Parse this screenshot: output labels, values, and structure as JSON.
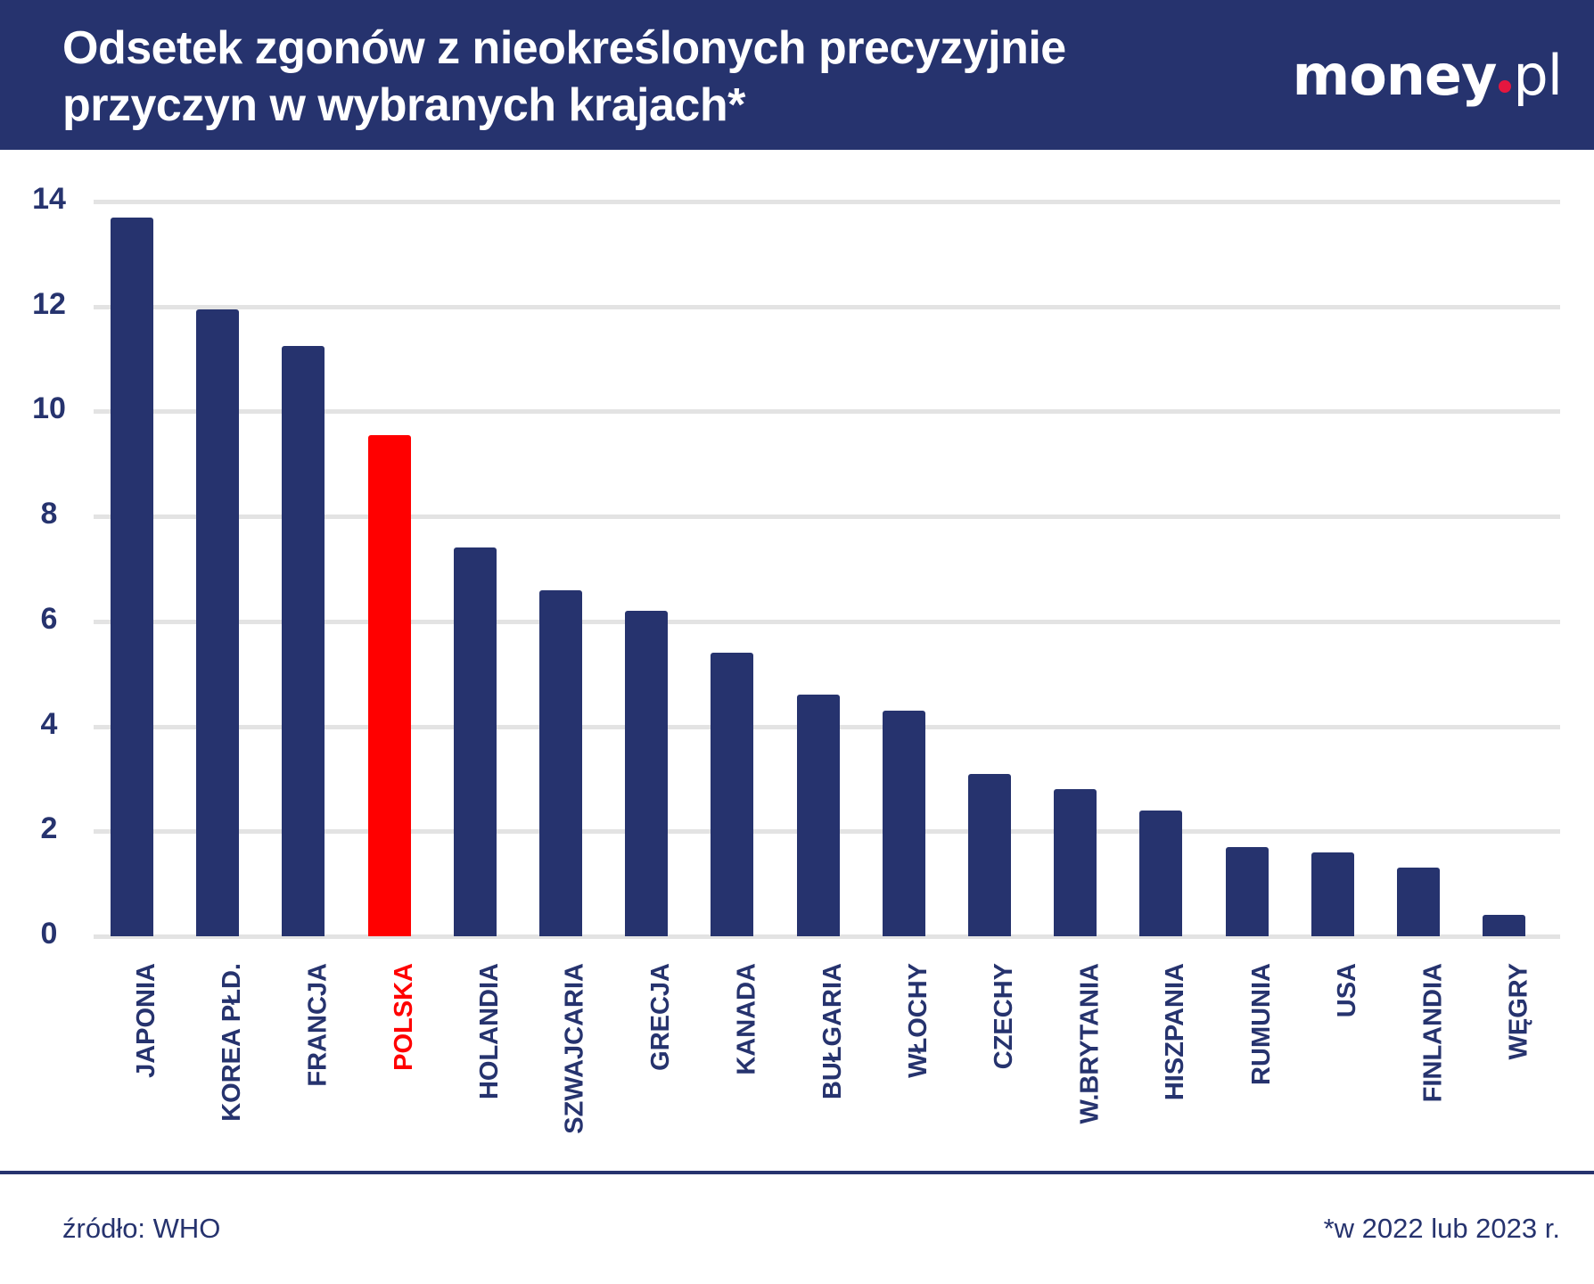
{
  "header": {
    "title_line1": "Odsetek zgonów z nieokreślonych precyzyjnie",
    "title_line2": "przyczyn w wybranych krajach*",
    "logo_main": "money",
    "logo_suffix": "pl"
  },
  "colors": {
    "header_bg": "#26336e",
    "bar_default": "#26336e",
    "bar_highlight": "#ff0000",
    "logo_dot": "#e5173f",
    "gridline": "#e3e3e3"
  },
  "footer": {
    "source": "źródło: WHO",
    "note": "*w 2022 lub 2023 r."
  },
  "chart_data": {
    "type": "bar",
    "title": "Odsetek zgonów z nieokreślonych precyzyjnie przyczyn w wybranych krajach*",
    "xlabel": "",
    "ylabel": "",
    "ylim": [
      0,
      14
    ],
    "yticks": [
      0,
      2,
      4,
      6,
      8,
      10,
      12,
      14
    ],
    "grid": true,
    "legend": null,
    "categories": [
      "JAPONIA",
      "KOREA PŁD.",
      "FRANCJA",
      "POLSKA",
      "HOLANDIA",
      "SZWAJCARIA",
      "GRECJA",
      "KANADA",
      "BUŁGARIA",
      "WŁOCHY",
      "CZECHY",
      "W.BRYTANIA",
      "HISZPANIA",
      "RUMUNIA",
      "USA",
      "FINLANDIA",
      "WĘGRY"
    ],
    "values": [
      13.7,
      11.95,
      11.25,
      9.55,
      7.4,
      6.6,
      6.2,
      5.4,
      4.6,
      4.3,
      3.1,
      2.8,
      2.4,
      1.7,
      1.6,
      1.3,
      0.4
    ],
    "highlight": "POLSKA",
    "annotations": [
      "źródło: WHO",
      "*w 2022 lub 2023 r."
    ]
  }
}
